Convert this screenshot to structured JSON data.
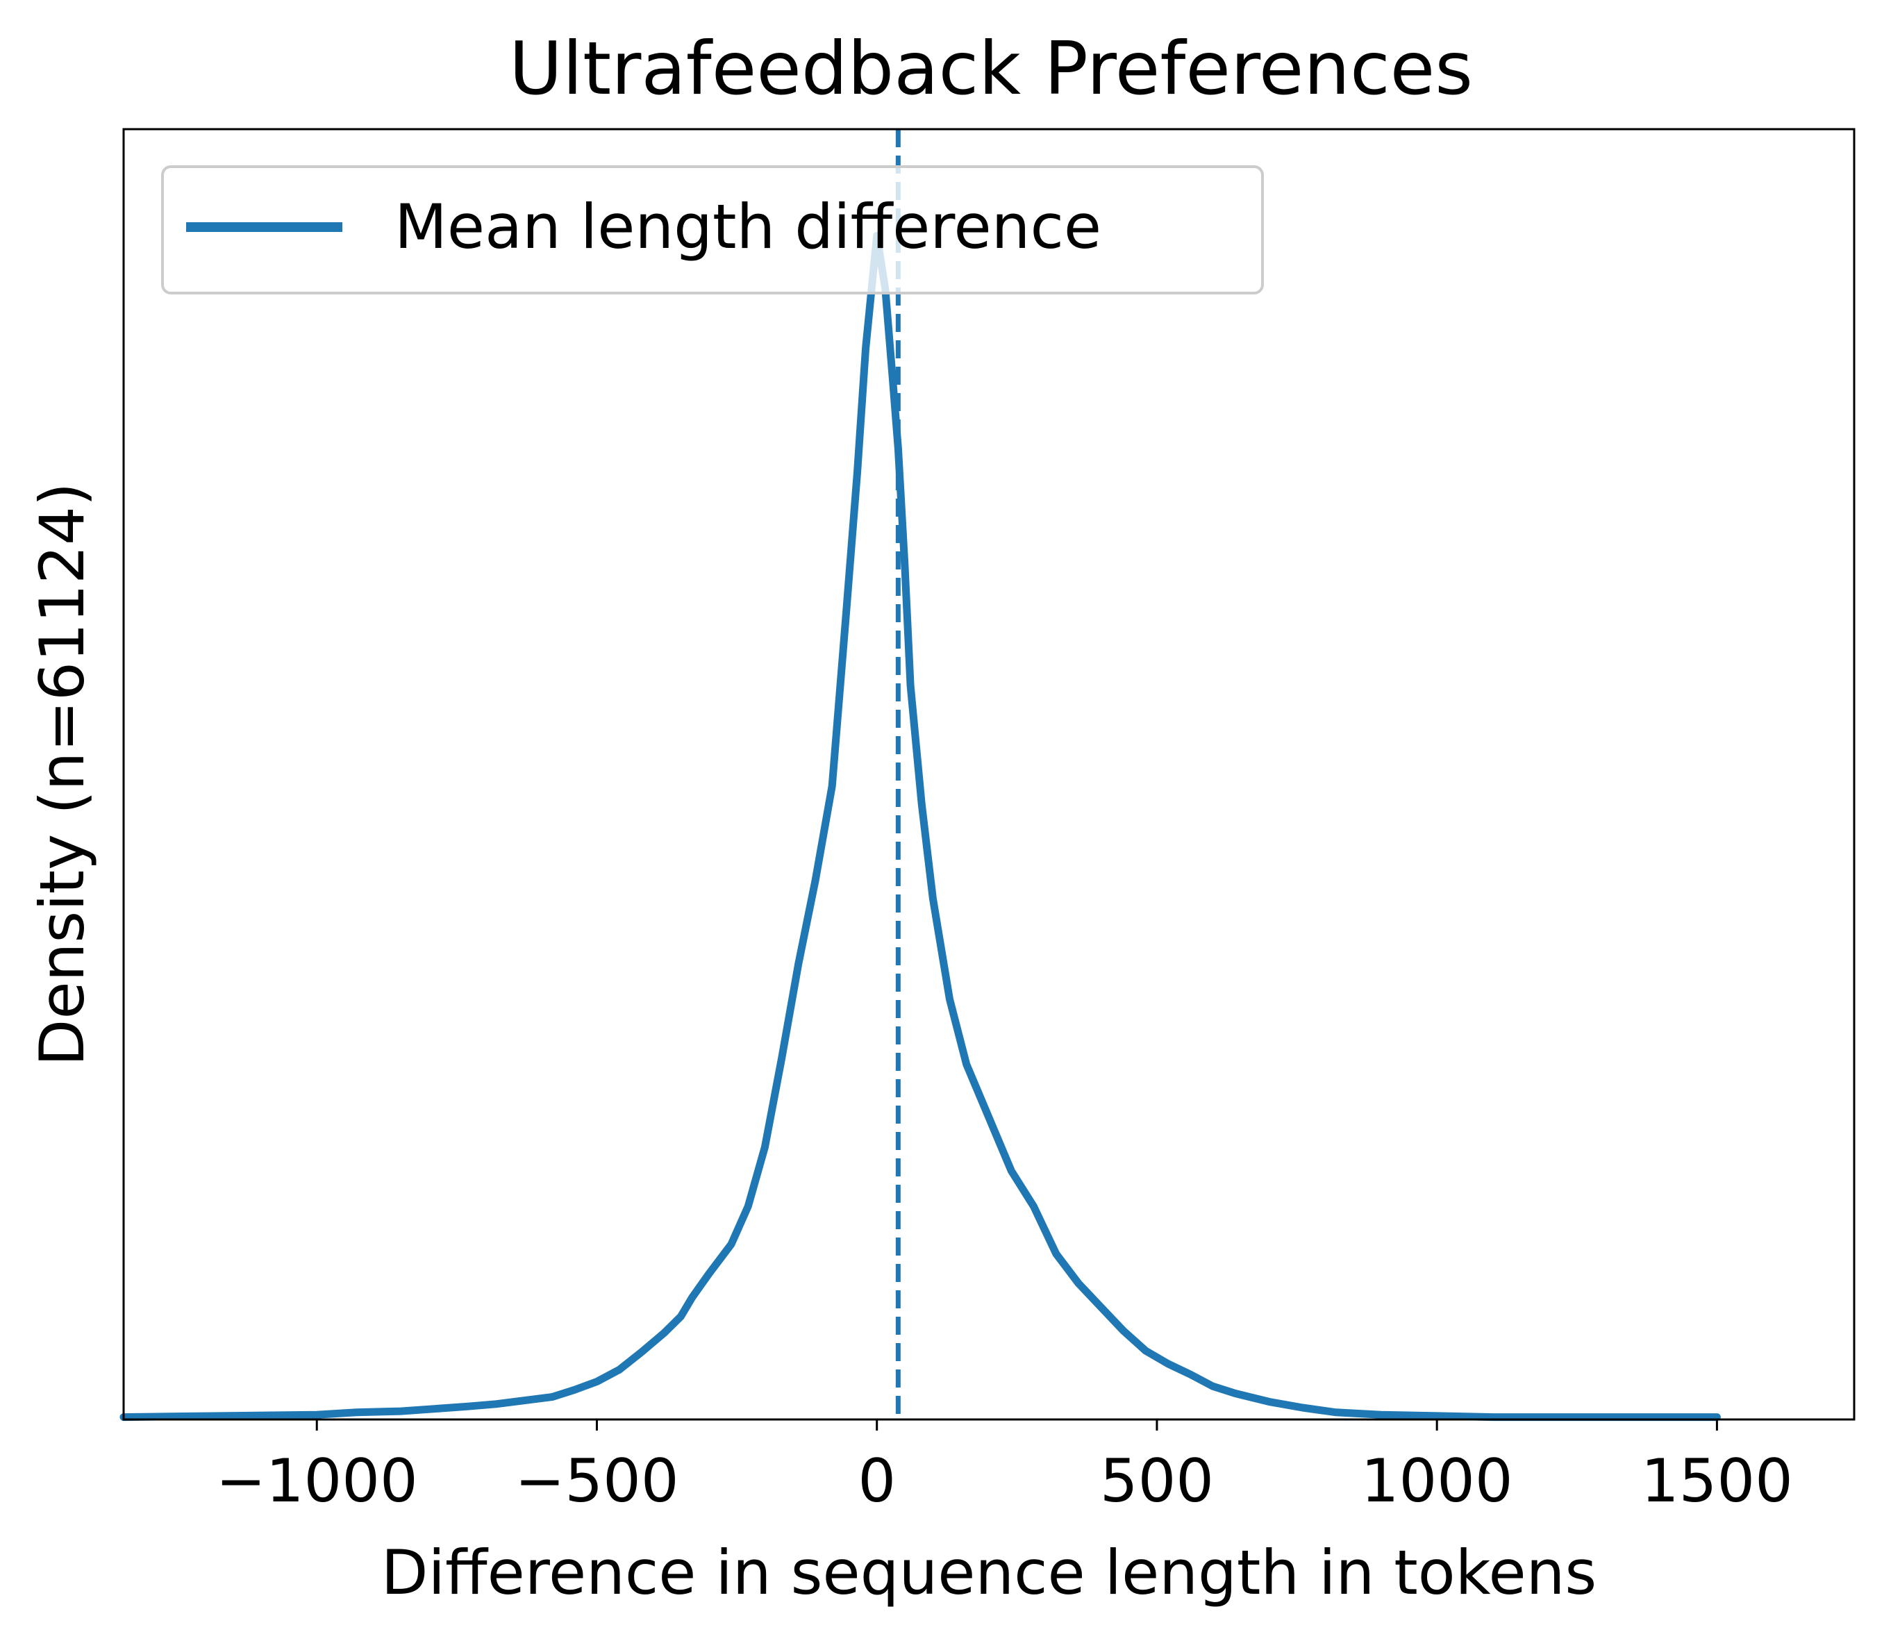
{
  "chart_data": {
    "type": "line",
    "title": "Ultrafeedback Preferences",
    "xlabel": "Difference in sequence length in tokens",
    "ylabel": "Density (n=61124)",
    "xlim": [
      -1345,
      1745
    ],
    "ylim": [
      0,
      1.09
    ],
    "xticks": [
      -1000,
      -500,
      0,
      500,
      1000,
      1500
    ],
    "xtick_labels": [
      "−1000",
      "−500",
      "0",
      "500",
      "1000",
      "1500"
    ],
    "yticks_visible": false,
    "grid": false,
    "legend": {
      "placement": "upper-left",
      "entries": [
        "Mean length difference"
      ]
    },
    "mean_line": {
      "x": 38,
      "style": "dashed"
    },
    "colors": {
      "series": "#1f77b4",
      "axes": "#000000",
      "legend_border": "#cccccc"
    },
    "series": [
      {
        "name": "",
        "x": [
          -1345,
          -1000,
          -930,
          -850,
          -790,
          -730,
          -680,
          -630,
          -580,
          -540,
          -500,
          -460,
          -420,
          -380,
          -350,
          -330,
          -300,
          -260,
          -230,
          -200,
          -170,
          -140,
          -110,
          -80,
          -55,
          -35,
          -20,
          0,
          15,
          28,
          38,
          50,
          60,
          80,
          100,
          130,
          160,
          200,
          240,
          280,
          320,
          360,
          400,
          440,
          480,
          520,
          560,
          600,
          640,
          700,
          760,
          820,
          900,
          1000,
          1100,
          1200,
          1350,
          1500
        ],
        "y": [
          0.002,
          0.004,
          0.006,
          0.007,
          0.009,
          0.011,
          0.013,
          0.016,
          0.019,
          0.025,
          0.032,
          0.042,
          0.057,
          0.073,
          0.087,
          0.103,
          0.123,
          0.148,
          0.18,
          0.23,
          0.305,
          0.385,
          0.455,
          0.535,
          0.68,
          0.8,
          0.905,
          1.0,
          0.955,
          0.88,
          0.82,
          0.72,
          0.62,
          0.52,
          0.44,
          0.355,
          0.3,
          0.255,
          0.21,
          0.18,
          0.14,
          0.115,
          0.095,
          0.075,
          0.058,
          0.047,
          0.038,
          0.028,
          0.022,
          0.015,
          0.01,
          0.006,
          0.004,
          0.003,
          0.002,
          0.002,
          0.002,
          0.002
        ]
      }
    ]
  }
}
